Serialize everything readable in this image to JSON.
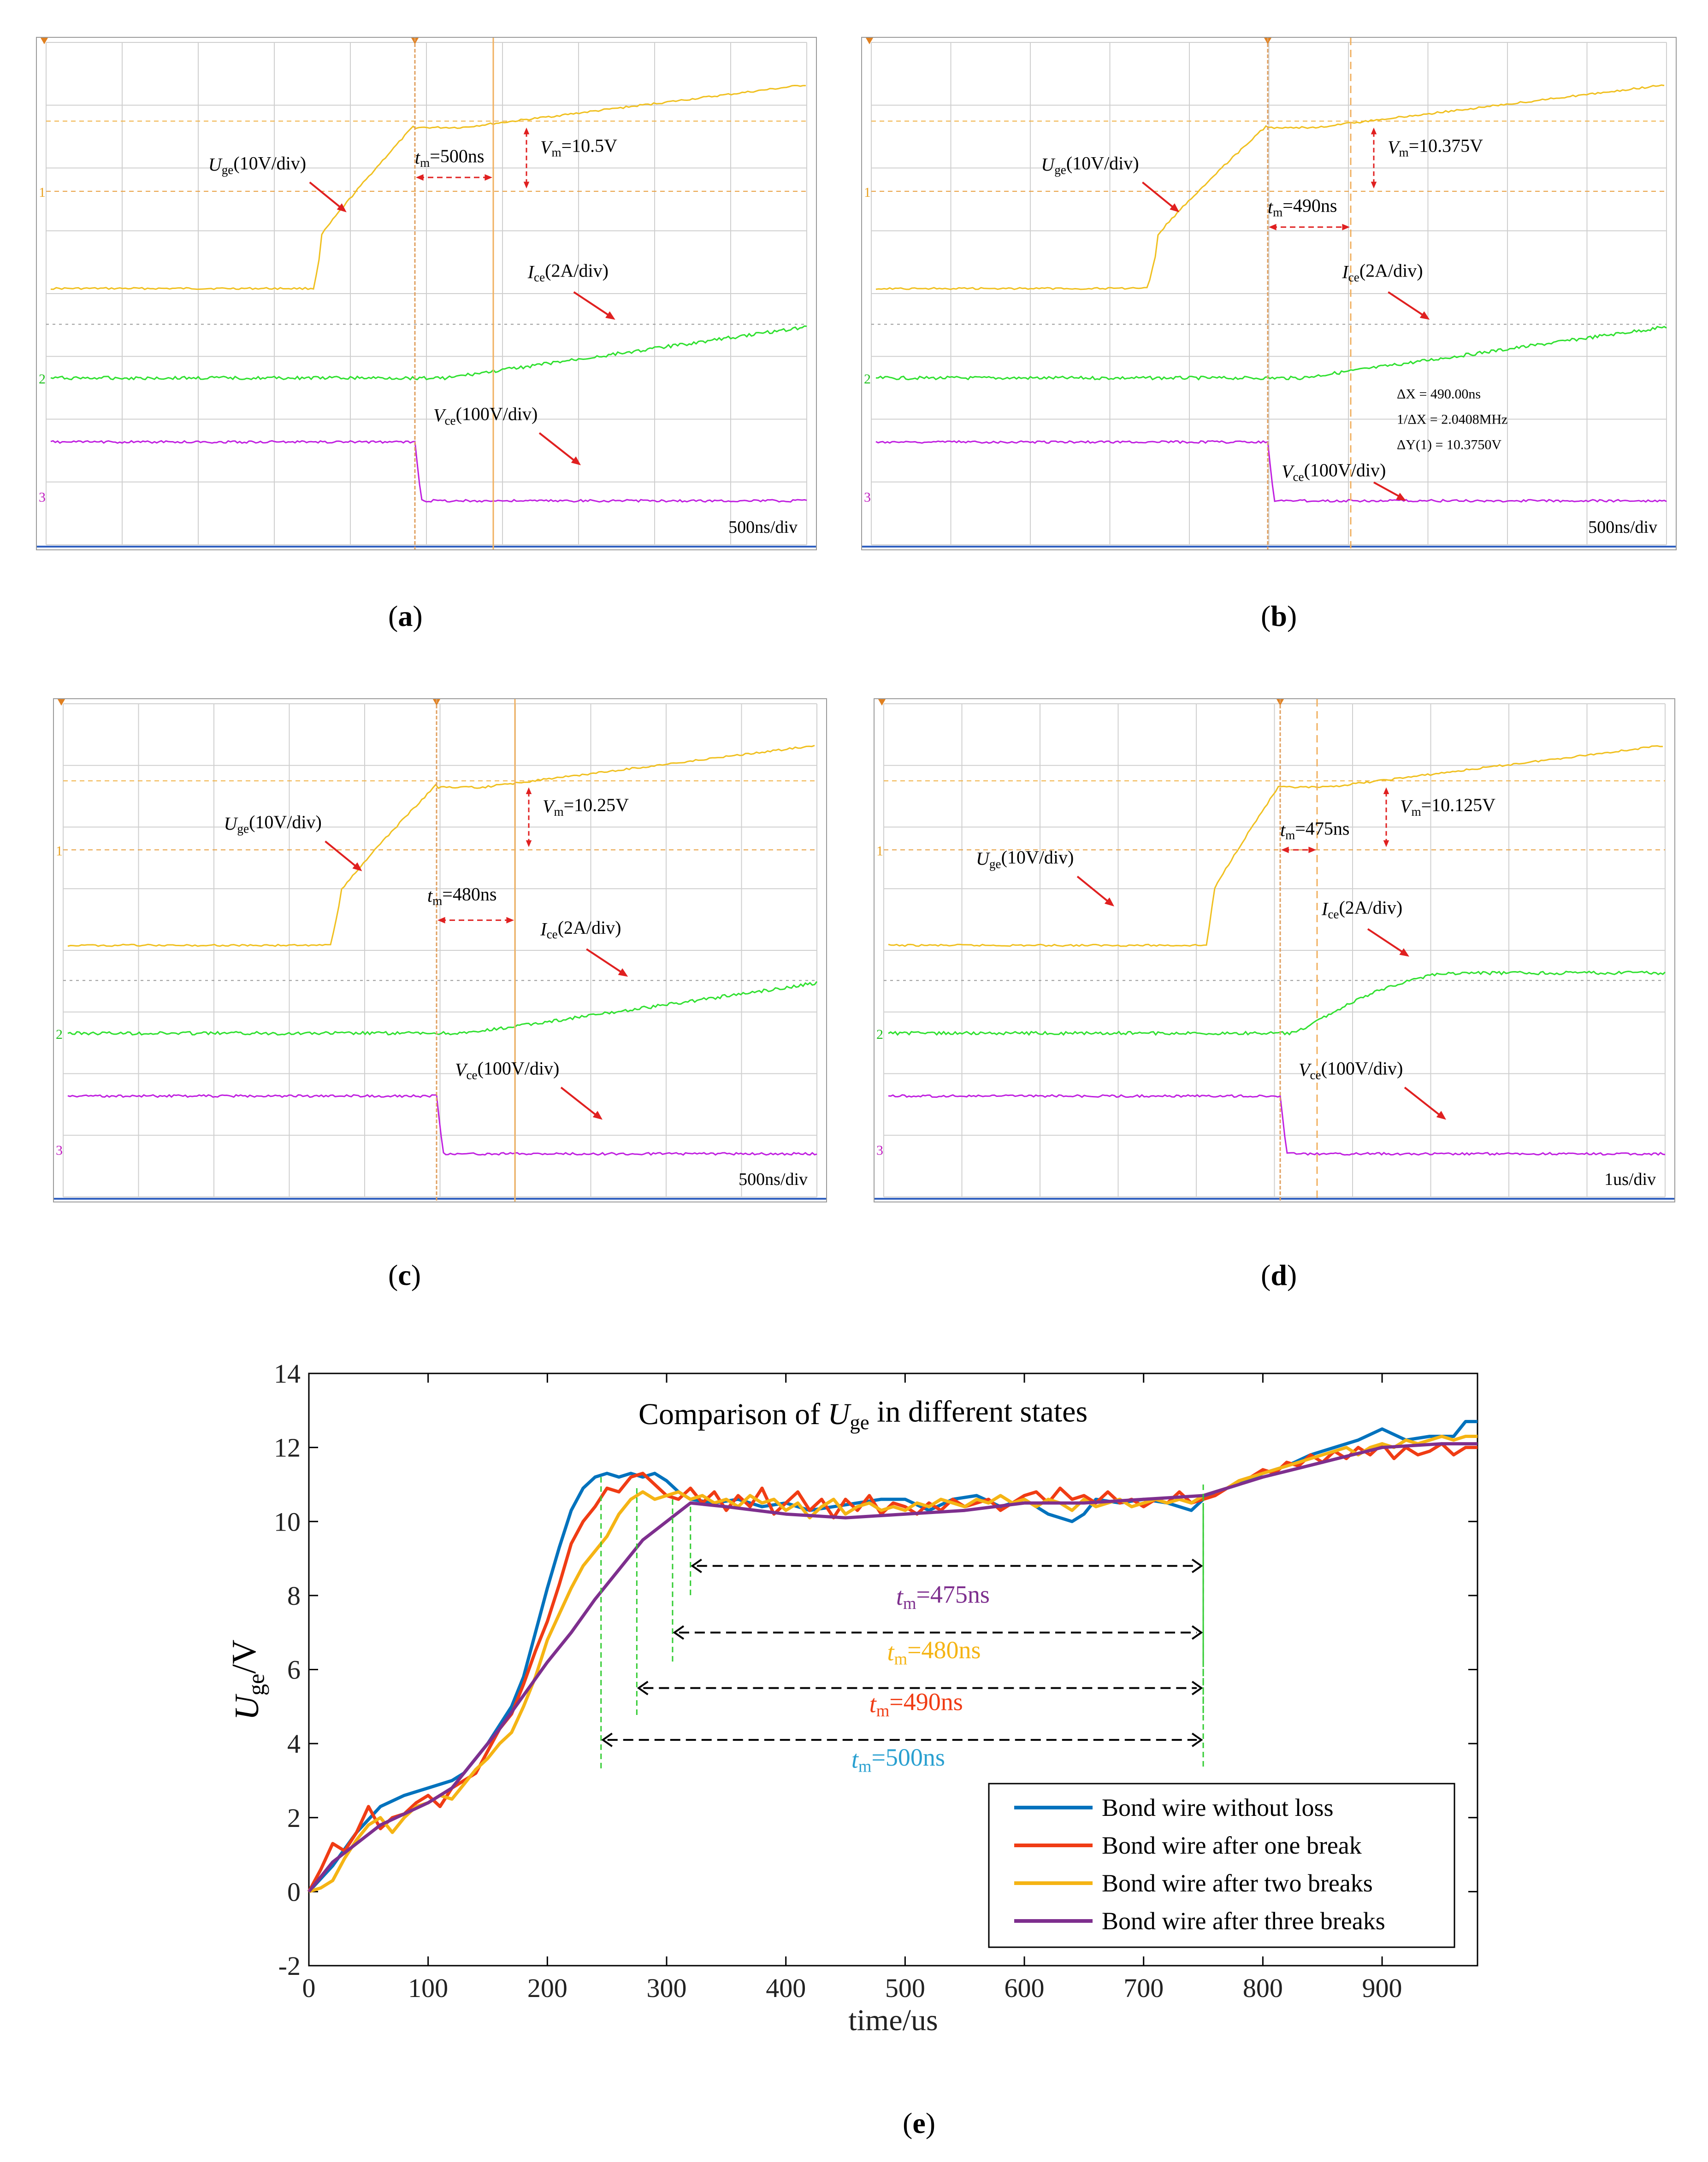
{
  "panels": [
    {
      "id": "a",
      "caption": "a",
      "timebase": "500ns/div",
      "tm_label": "=500ns",
      "vm_label": "=10.5V",
      "uge_label": "(10V/div)",
      "ice_label": "(2A/div)",
      "vce_label": "(100V/div)",
      "cursor_readout": []
    },
    {
      "id": "b",
      "caption": "b",
      "timebase": "500ns/div",
      "tm_label": "=490ns",
      "vm_label": "=10.375V",
      "uge_label": "(10V/div)",
      "ice_label": "(2A/div)",
      "vce_label": "(100V/div)",
      "cursor_readout": [
        "ΔX = 490.00ns",
        "1/ΔX = 2.0408MHz",
        "ΔY(1) = 10.3750V"
      ]
    },
    {
      "id": "c",
      "caption": "c",
      "timebase": "500ns/div",
      "tm_label": "=480ns",
      "vm_label": "=10.25V",
      "uge_label": "(10V/div)",
      "ice_label": "(2A/div)",
      "vce_label": "(100V/div)",
      "cursor_readout": []
    },
    {
      "id": "d",
      "caption": "d",
      "timebase": "1us/div",
      "tm_label": "=475ns",
      "vm_label": "=10.125V",
      "uge_label": "(10V/div)",
      "ice_label": "(2A/div)",
      "vce_label": "(100V/div)",
      "cursor_readout": []
    }
  ],
  "symbols": {
    "U": "U",
    "ge": "ge",
    "I": "I",
    "V": "V",
    "ce": "ce",
    "t": "t",
    "m": "m",
    "ch1": "1",
    "ch2": "2",
    "ch3": "3"
  },
  "chart_data": {
    "type": "line",
    "caption": "e",
    "title_prefix": "Comparison of ",
    "title_symbol": "U",
    "title_sub": "ge",
    "title_suffix": " in different states",
    "xlabel": "time/us",
    "ylabel_main": "U",
    "ylabel_sub": "ge",
    "ylabel_unit": "/V",
    "xlim": [
      0,
      980
    ],
    "ylim": [
      -2,
      14
    ],
    "xticks": [
      0,
      100,
      200,
      300,
      400,
      500,
      600,
      700,
      800,
      900
    ],
    "yticks": [
      -2,
      0,
      2,
      4,
      6,
      8,
      10,
      12,
      14
    ],
    "legend_position": "bottom-right",
    "colors": {
      "no_loss": "#0072bd",
      "one_break": "#f03c14",
      "two_breaks": "#f5b414",
      "three_breaks": "#7e2f8e",
      "guide": "#33cc33",
      "arrow": "#000000"
    },
    "series": [
      {
        "name": "Bond wire without loss",
        "color": "#0072bd",
        "x": [
          0,
          20,
          40,
          60,
          80,
          100,
          120,
          130,
          150,
          170,
          180,
          190,
          200,
          210,
          220,
          230,
          240,
          250,
          260,
          270,
          280,
          290,
          300,
          310,
          320,
          340,
          360,
          380,
          400,
          420,
          440,
          460,
          480,
          500,
          520,
          540,
          560,
          580,
          600,
          620,
          640,
          650,
          660,
          680,
          700,
          720,
          740,
          750,
          760,
          780,
          800,
          820,
          840,
          860,
          880,
          900,
          920,
          940,
          960,
          970,
          980
        ],
        "values": [
          0,
          0.7,
          1.6,
          2.3,
          2.6,
          2.8,
          3.0,
          3.2,
          4.0,
          5.0,
          5.8,
          7.0,
          8.2,
          9.3,
          10.3,
          10.9,
          11.2,
          11.3,
          11.2,
          11.3,
          11.2,
          11.3,
          11.1,
          10.8,
          10.6,
          10.5,
          10.6,
          10.4,
          10.5,
          10.3,
          10.4,
          10.5,
          10.6,
          10.6,
          10.3,
          10.6,
          10.7,
          10.4,
          10.6,
          10.2,
          10.0,
          10.2,
          10.6,
          10.5,
          10.6,
          10.5,
          10.3,
          10.6,
          10.8,
          11.0,
          11.3,
          11.5,
          11.8,
          12.0,
          12.2,
          12.5,
          12.2,
          12.3,
          12.3,
          12.7,
          12.7
        ]
      },
      {
        "name": "Bond wire after one break",
        "color": "#f03c14",
        "x": [
          0,
          10,
          20,
          30,
          40,
          50,
          60,
          70,
          80,
          90,
          100,
          110,
          120,
          130,
          140,
          150,
          160,
          170,
          180,
          190,
          200,
          210,
          220,
          230,
          240,
          250,
          260,
          270,
          280,
          290,
          300,
          310,
          320,
          330,
          340,
          350,
          360,
          370,
          380,
          390,
          400,
          410,
          420,
          430,
          440,
          450,
          460,
          470,
          480,
          490,
          500,
          510,
          520,
          530,
          540,
          550,
          560,
          570,
          580,
          590,
          600,
          610,
          620,
          630,
          640,
          650,
          660,
          670,
          680,
          690,
          700,
          710,
          720,
          730,
          740,
          750,
          760,
          770,
          780,
          790,
          800,
          810,
          820,
          830,
          840,
          850,
          860,
          870,
          880,
          890,
          900,
          910,
          920,
          930,
          940,
          950,
          960,
          970,
          980
        ],
        "values": [
          0,
          0.6,
          1.3,
          1.1,
          1.6,
          2.3,
          1.7,
          2.0,
          2.1,
          2.4,
          2.6,
          2.3,
          2.8,
          3.0,
          3.2,
          3.8,
          4.4,
          4.8,
          5.6,
          6.5,
          7.3,
          8.3,
          9.4,
          10.0,
          10.4,
          10.9,
          10.8,
          11.2,
          11.3,
          11.0,
          10.7,
          10.6,
          10.9,
          10.5,
          10.8,
          10.3,
          10.7,
          10.4,
          10.9,
          10.2,
          10.5,
          10.8,
          10.3,
          10.6,
          10.1,
          10.6,
          10.3,
          10.7,
          10.2,
          10.5,
          10.4,
          10.2,
          10.5,
          10.3,
          10.6,
          10.4,
          10.5,
          10.6,
          10.3,
          10.5,
          10.7,
          10.8,
          10.5,
          10.9,
          10.6,
          10.7,
          10.5,
          10.8,
          10.5,
          10.6,
          10.4,
          10.6,
          10.5,
          10.8,
          10.5,
          10.6,
          10.7,
          10.9,
          11.1,
          11.2,
          11.4,
          11.3,
          11.6,
          11.5,
          11.8,
          11.6,
          11.9,
          11.7,
          12.0,
          11.8,
          12.1,
          11.7,
          12.0,
          11.8,
          11.9,
          12.1,
          11.8,
          12.0,
          12.0
        ]
      },
      {
        "name": "Bond wire after two breaks",
        "color": "#f5b414",
        "x": [
          0,
          10,
          20,
          30,
          40,
          50,
          60,
          70,
          80,
          90,
          100,
          110,
          120,
          130,
          140,
          150,
          160,
          170,
          180,
          190,
          200,
          210,
          220,
          230,
          240,
          250,
          260,
          270,
          280,
          290,
          300,
          310,
          320,
          330,
          340,
          350,
          360,
          370,
          380,
          390,
          400,
          410,
          420,
          430,
          440,
          450,
          460,
          470,
          480,
          490,
          500,
          510,
          520,
          530,
          540,
          550,
          560,
          570,
          580,
          590,
          600,
          610,
          620,
          630,
          640,
          650,
          660,
          670,
          680,
          690,
          700,
          710,
          720,
          730,
          740,
          750,
          760,
          770,
          780,
          790,
          800,
          810,
          820,
          830,
          840,
          850,
          860,
          870,
          880,
          890,
          900,
          910,
          920,
          930,
          940,
          950,
          960,
          970,
          980
        ],
        "values": [
          0,
          0.1,
          0.3,
          0.9,
          1.4,
          1.8,
          2.0,
          1.6,
          2.0,
          2.3,
          2.4,
          2.6,
          2.5,
          2.9,
          3.3,
          3.6,
          4.0,
          4.3,
          5.0,
          5.8,
          6.8,
          7.5,
          8.2,
          8.8,
          9.2,
          9.6,
          10.2,
          10.6,
          10.8,
          10.6,
          10.7,
          10.8,
          10.6,
          10.7,
          10.5,
          10.6,
          10.4,
          10.7,
          10.5,
          10.6,
          10.3,
          10.5,
          10.1,
          10.4,
          10.6,
          10.2,
          10.4,
          10.5,
          10.3,
          10.4,
          10.3,
          10.5,
          10.4,
          10.6,
          10.5,
          10.4,
          10.6,
          10.5,
          10.7,
          10.5,
          10.6,
          10.4,
          10.6,
          10.5,
          10.3,
          10.6,
          10.4,
          10.5,
          10.6,
          10.4,
          10.5,
          10.6,
          10.5,
          10.6,
          10.5,
          10.7,
          10.8,
          10.9,
          11.1,
          11.2,
          11.3,
          11.4,
          11.5,
          11.6,
          11.7,
          11.8,
          11.9,
          12.0,
          11.8,
          12.0,
          12.1,
          12.0,
          12.2,
          12.1,
          12.2,
          12.3,
          12.2,
          12.3,
          12.3
        ]
      },
      {
        "name": "Bond wire after three breaks",
        "color": "#7e2f8e",
        "x": [
          0,
          20,
          40,
          60,
          80,
          100,
          120,
          140,
          160,
          180,
          200,
          220,
          240,
          260,
          280,
          300,
          320,
          350,
          400,
          450,
          500,
          550,
          600,
          650,
          700,
          750,
          800,
          850,
          900,
          950,
          980
        ],
        "values": [
          0,
          0.8,
          1.3,
          1.8,
          2.1,
          2.4,
          2.8,
          3.6,
          4.4,
          5.3,
          6.2,
          7.0,
          7.9,
          8.7,
          9.5,
          10.0,
          10.5,
          10.4,
          10.2,
          10.1,
          10.2,
          10.3,
          10.5,
          10.5,
          10.6,
          10.7,
          11.2,
          11.6,
          12.0,
          12.1,
          12.1
        ]
      }
    ],
    "annotations": [
      {
        "label_sym": "t",
        "label_sub": "m",
        "label_val": "=475ns",
        "color": "#7e2f8e",
        "x_start": 320,
        "x_end": 750,
        "y": 8.8,
        "y_text": 8.0,
        "guide_top": 10.4
      },
      {
        "label_sym": "t",
        "label_sub": "m",
        "label_val": "=480ns",
        "color": "#f5b414",
        "x_start": 305,
        "x_end": 750,
        "y": 7.0,
        "y_text": 6.5,
        "guide_top": 10.6
      },
      {
        "label_sym": "t",
        "label_sub": "m",
        "label_val": "=490ns",
        "color": "#f03c14",
        "x_start": 275,
        "x_end": 750,
        "y": 5.5,
        "y_text": 5.1,
        "guide_top": 10.9
      },
      {
        "label_sym": "t",
        "label_sub": "m",
        "label_val": "=500ns",
        "color": "#2aa0d0",
        "x_start": 245,
        "x_end": 750,
        "y": 4.1,
        "y_text": 3.6,
        "guide_top": 11.2
      }
    ]
  }
}
